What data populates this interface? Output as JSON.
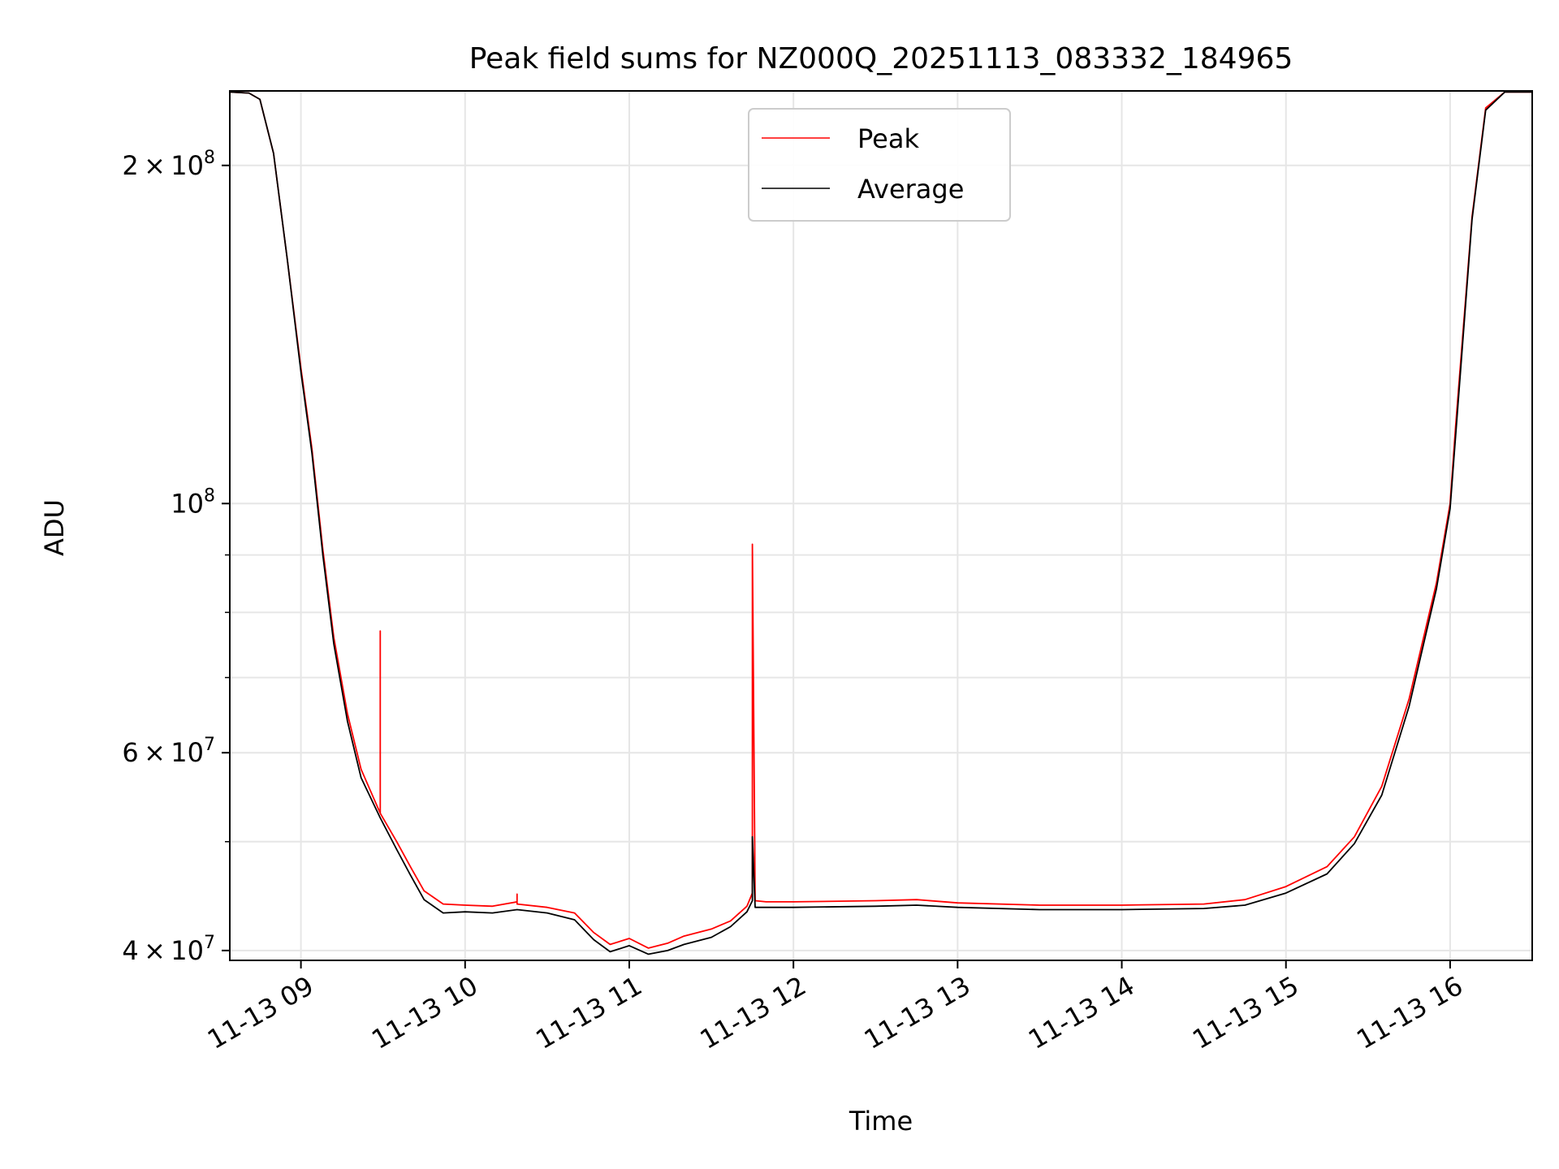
{
  "chart_data": {
    "type": "line",
    "title": "Peak field sums for NZ000Q_20251113_083332_184965",
    "xlabel": "Time",
    "ylabel": "ADU",
    "x_unit": "datetime",
    "xlim": [
      "2025-11-13 08:34",
      "2025-11-13 16:30"
    ],
    "ylim": [
      39200000,
      233000000
    ],
    "y_scale": "log",
    "grid": true,
    "legend_position": "top-center",
    "x_ticks": [
      {
        "value": "2025-11-13 09:00",
        "label": "11-13 09"
      },
      {
        "value": "2025-11-13 10:00",
        "label": "11-13 10"
      },
      {
        "value": "2025-11-13 11:00",
        "label": "11-13 11"
      },
      {
        "value": "2025-11-13 12:00",
        "label": "11-13 12"
      },
      {
        "value": "2025-11-13 13:00",
        "label": "11-13 13"
      },
      {
        "value": "2025-11-13 14:00",
        "label": "11-13 14"
      },
      {
        "value": "2025-11-13 15:00",
        "label": "11-13 15"
      },
      {
        "value": "2025-11-13 16:00",
        "label": "11-13 16"
      }
    ],
    "y_ticks": [
      {
        "value": 40000000,
        "mantissa": "4",
        "exp": "7"
      },
      {
        "value": 60000000,
        "mantissa": "6",
        "exp": "7"
      },
      {
        "value": 100000000,
        "mantissa": "",
        "exp": "8"
      },
      {
        "value": 200000000,
        "mantissa": "2",
        "exp": "8"
      }
    ],
    "y_minor_ticks": [
      50000000,
      70000000,
      80000000,
      90000000
    ],
    "series": [
      {
        "name": "Peak",
        "color": "#ff0000",
        "x": [
          "2025-11-13 08:34",
          "2025-11-13 08:41",
          "2025-11-13 08:45",
          "2025-11-13 08:50",
          "2025-11-13 08:55",
          "2025-11-13 09:00",
          "2025-11-13 09:04",
          "2025-11-13 09:08",
          "2025-11-13 09:12",
          "2025-11-13 09:17",
          "2025-11-13 09:22",
          "2025-11-13 09:29",
          "2025-11-13 09:29",
          "2025-11-13 09:29",
          "2025-11-13 09:35",
          "2025-11-13 09:40",
          "2025-11-13 09:45",
          "2025-11-13 09:52",
          "2025-11-13 10:00",
          "2025-11-13 10:10",
          "2025-11-13 10:19",
          "2025-11-13 10:19",
          "2025-11-13 10:19",
          "2025-11-13 10:30",
          "2025-11-13 10:40",
          "2025-11-13 10:47",
          "2025-11-13 10:53",
          "2025-11-13 11:00",
          "2025-11-13 11:07",
          "2025-11-13 11:14",
          "2025-11-13 11:20",
          "2025-11-13 11:30",
          "2025-11-13 11:37",
          "2025-11-13 11:43",
          "2025-11-13 11:45",
          "2025-11-13 11:45",
          "2025-11-13 11:46",
          "2025-11-13 11:50",
          "2025-11-13 12:00",
          "2025-11-13 12:30",
          "2025-11-13 12:45",
          "2025-11-13 13:00",
          "2025-11-13 13:30",
          "2025-11-13 14:00",
          "2025-11-13 14:30",
          "2025-11-13 14:45",
          "2025-11-13 15:00",
          "2025-11-13 15:15",
          "2025-11-13 15:25",
          "2025-11-13 15:35",
          "2025-11-13 15:45",
          "2025-11-13 15:55",
          "2025-11-13 16:00",
          "2025-11-13 16:02",
          "2025-11-13 16:08",
          "2025-11-13 16:13",
          "2025-11-13 16:20",
          "2025-11-13 16:30"
        ],
        "y": [
          232500000,
          232000000,
          229000000,
          205000000,
          165000000,
          132000000,
          112000000,
          91000000,
          76000000,
          65000000,
          58000000,
          53000000,
          77000000,
          53000000,
          50000000,
          47500000,
          45200000,
          44000000,
          43900000,
          43800000,
          44200000,
          44900000,
          44000000,
          43700000,
          43200000,
          41500000,
          40500000,
          41000000,
          40200000,
          40600000,
          41200000,
          41800000,
          42500000,
          43800000,
          45000000,
          92000000,
          44300000,
          44200000,
          44200000,
          44300000,
          44400000,
          44100000,
          43900000,
          43900000,
          44000000,
          44400000,
          45600000,
          47500000,
          50500000,
          56000000,
          67000000,
          85000000,
          100000000,
          117000000,
          180000000,
          225000000,
          232500000,
          232500000
        ]
      },
      {
        "name": "Average",
        "color": "#000000",
        "x": [
          "2025-11-13 08:34",
          "2025-11-13 08:41",
          "2025-11-13 08:45",
          "2025-11-13 08:50",
          "2025-11-13 08:55",
          "2025-11-13 09:00",
          "2025-11-13 09:04",
          "2025-11-13 09:08",
          "2025-11-13 09:12",
          "2025-11-13 09:17",
          "2025-11-13 09:22",
          "2025-11-13 09:29",
          "2025-11-13 09:35",
          "2025-11-13 09:40",
          "2025-11-13 09:45",
          "2025-11-13 09:52",
          "2025-11-13 10:00",
          "2025-11-13 10:10",
          "2025-11-13 10:19",
          "2025-11-13 10:30",
          "2025-11-13 10:40",
          "2025-11-13 10:47",
          "2025-11-13 10:53",
          "2025-11-13 11:00",
          "2025-11-13 11:07",
          "2025-11-13 11:14",
          "2025-11-13 11:20",
          "2025-11-13 11:30",
          "2025-11-13 11:37",
          "2025-11-13 11:43",
          "2025-11-13 11:45",
          "2025-11-13 11:45",
          "2025-11-13 11:46",
          "2025-11-13 11:50",
          "2025-11-13 12:00",
          "2025-11-13 12:30",
          "2025-11-13 12:45",
          "2025-11-13 13:00",
          "2025-11-13 13:30",
          "2025-11-13 14:00",
          "2025-11-13 14:30",
          "2025-11-13 14:45",
          "2025-11-13 15:00",
          "2025-11-13 15:15",
          "2025-11-13 15:25",
          "2025-11-13 15:35",
          "2025-11-13 15:45",
          "2025-11-13 15:55",
          "2025-11-13 16:00",
          "2025-11-13 16:08",
          "2025-11-13 16:13",
          "2025-11-13 16:20",
          "2025-11-13 16:30"
        ],
        "y": [
          232500000,
          232000000,
          229000000,
          205000000,
          165000000,
          131000000,
          111000000,
          90000000,
          75000000,
          64000000,
          57000000,
          52500000,
          49200000,
          46700000,
          44400000,
          43200000,
          43300000,
          43200000,
          43500000,
          43200000,
          42600000,
          40900000,
          39900000,
          40400000,
          39700000,
          40000000,
          40500000,
          41100000,
          42000000,
          43300000,
          44300000,
          50500000,
          43700000,
          43700000,
          43700000,
          43800000,
          43900000,
          43700000,
          43500000,
          43500000,
          43600000,
          43900000,
          45000000,
          46800000,
          49800000,
          55000000,
          66000000,
          84000000,
          99000000,
          179000000,
          224000000,
          232500000,
          232500000
        ]
      }
    ]
  }
}
